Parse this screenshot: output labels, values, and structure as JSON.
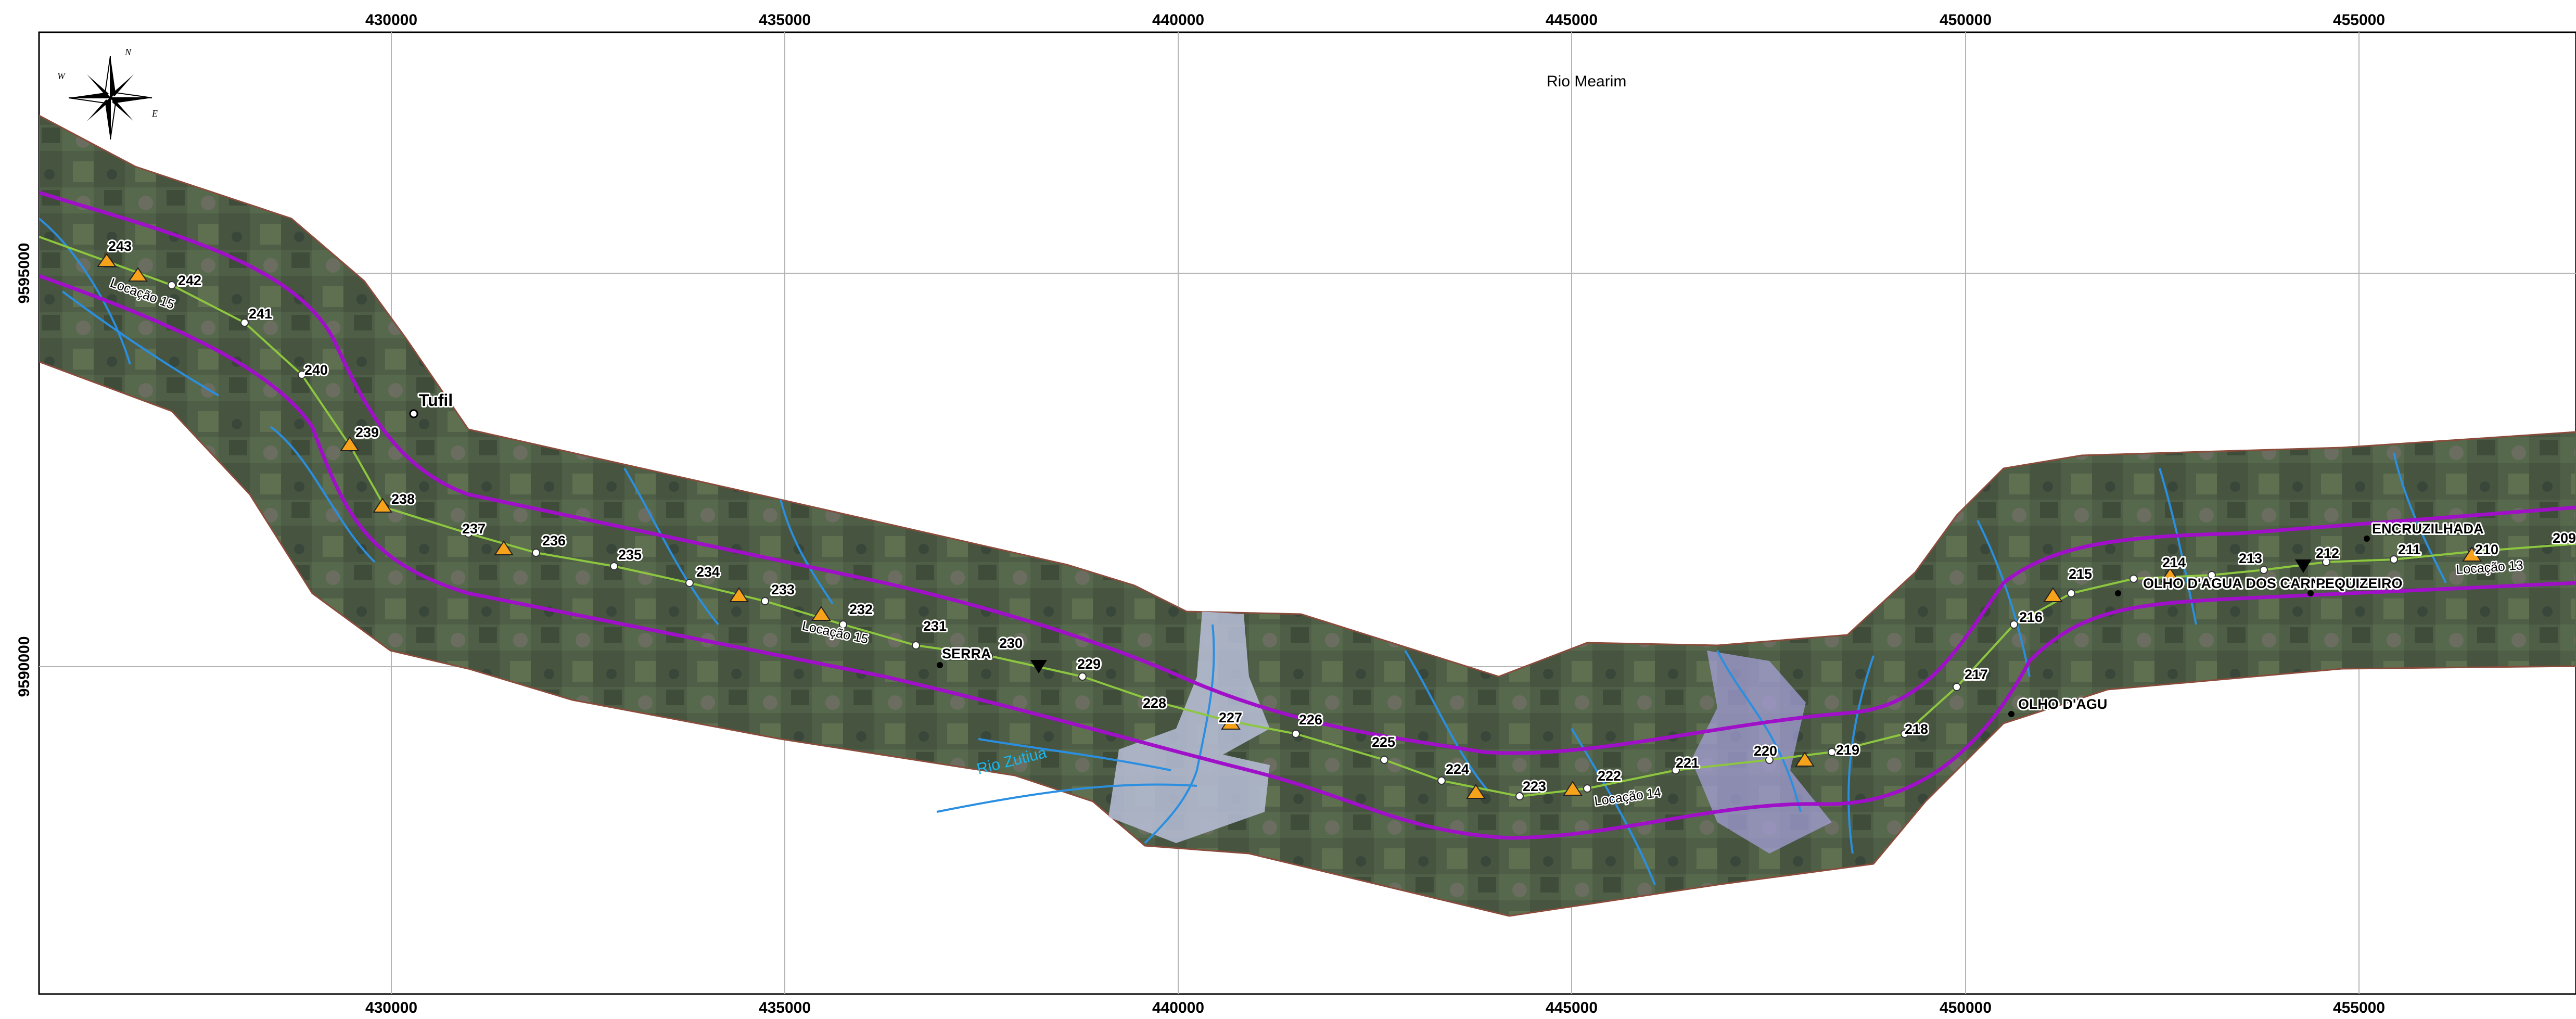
{
  "map": {
    "title": "Rio Mearim",
    "x_ticks": [
      "430000",
      "435000",
      "440000",
      "445000",
      "450000",
      "455000"
    ],
    "y_ticks": [
      "9595000",
      "9590000"
    ],
    "compass": {
      "n": "N",
      "e": "E",
      "w": "W"
    },
    "rivers": [
      {
        "name": "Rio Zutiua"
      }
    ],
    "places": [
      {
        "name": "Tufil"
      },
      {
        "name": "SERRA"
      },
      {
        "name": "ENCRUZILHADA"
      },
      {
        "name": "OLHO D'AGUA DOS CARNEIROS"
      },
      {
        "name": "PEQUIZEIRO"
      },
      {
        "name": "OLHO D'AGU"
      }
    ],
    "locations": [
      {
        "label": "Locação 15"
      },
      {
        "label": "Locação 15"
      },
      {
        "label": "Locação 14"
      },
      {
        "label": "Locação 13"
      }
    ],
    "towers": [
      "243",
      "242",
      "241",
      "240",
      "239",
      "238",
      "237",
      "236",
      "235",
      "234",
      "233",
      "232",
      "231",
      "230",
      "229",
      "228",
      "227",
      "226",
      "225",
      "224",
      "223",
      "222",
      "221",
      "220",
      "219",
      "218",
      "217",
      "216",
      "215",
      "214",
      "213",
      "212",
      "211",
      "210",
      "209"
    ],
    "colors": {
      "corridor_boundary": "#a010c8",
      "transmission_line": "#8dc63f",
      "rivers": "#2a8fe0",
      "location_marker": "#f7a21b",
      "imagery": "#4e5e46"
    }
  }
}
